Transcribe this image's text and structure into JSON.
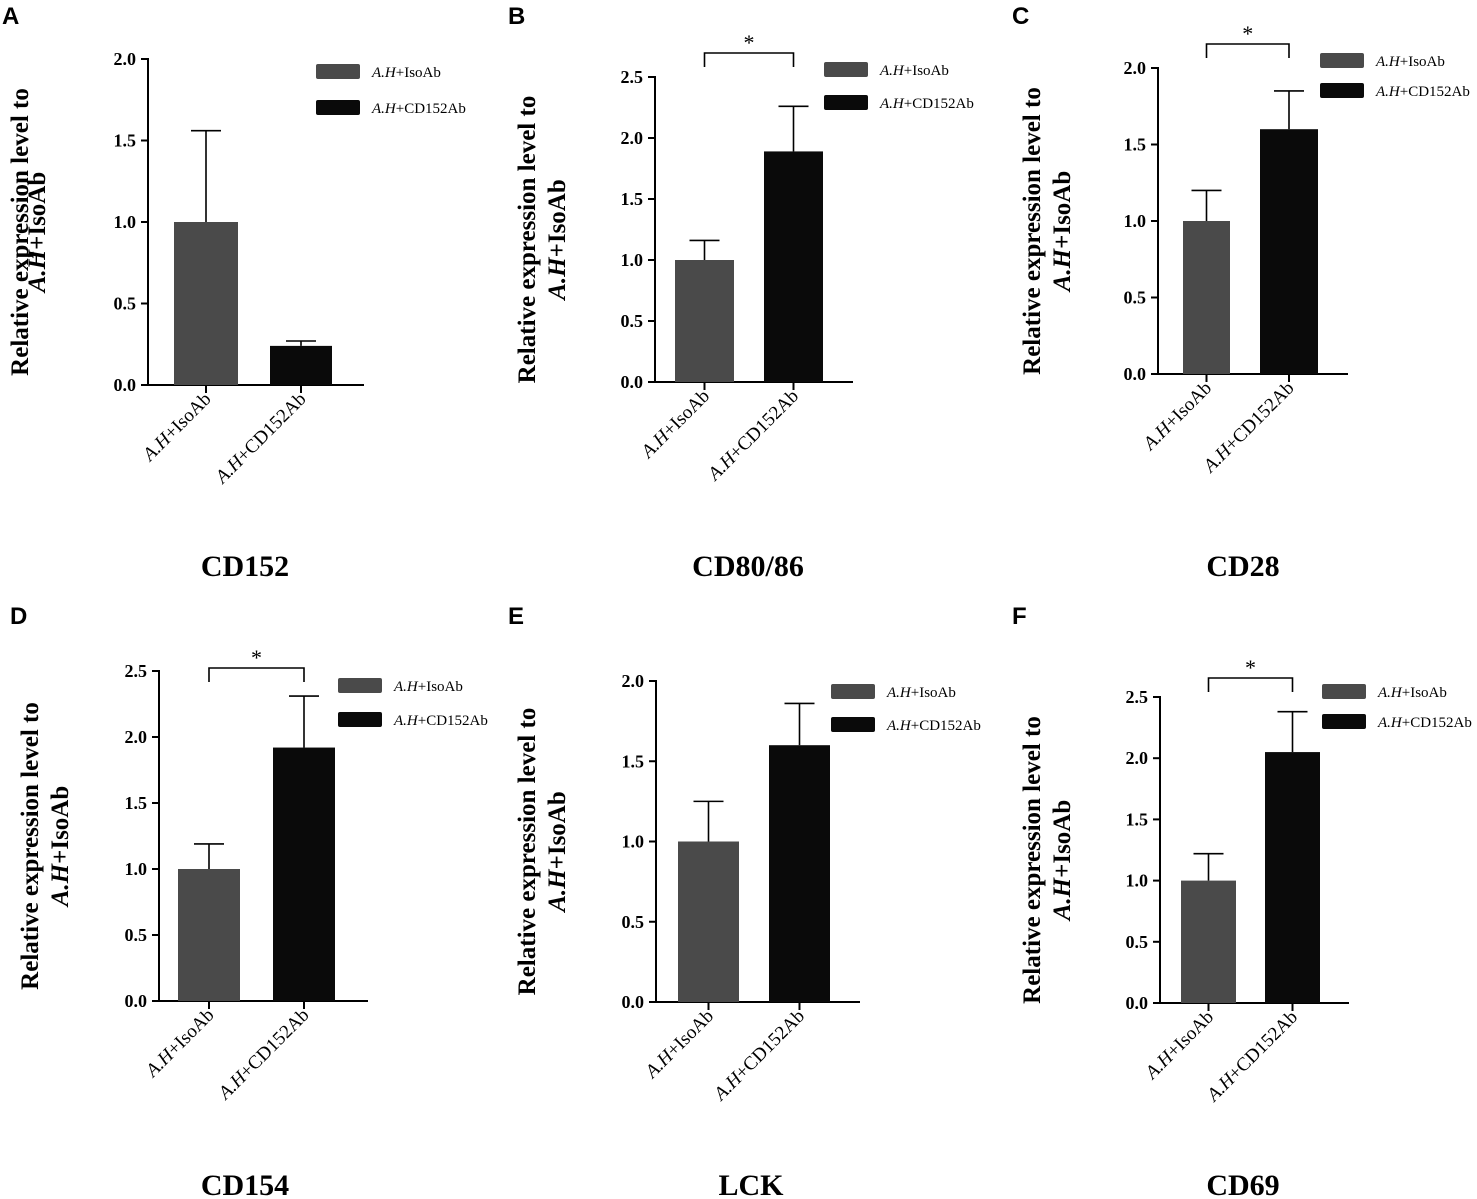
{
  "chart_data": [
    {
      "type": "bar",
      "panel": "A",
      "title": "CD152",
      "ylabel_line1": "Relative expression level to",
      "ylabel_italic": "A.H",
      "ylabel_rest": "+IsoAb",
      "categories": [
        "A.H+IsoAb",
        "A.H+CD152Ab"
      ],
      "category_italic": "A.H",
      "category_rest": [
        "+IsoAb",
        "+CD152Ab"
      ],
      "values": [
        1.0,
        0.24
      ],
      "errors": [
        0.56,
        0.03
      ],
      "ylim": [
        0,
        2.0
      ],
      "yticks": [
        0.0,
        0.5,
        1.0,
        1.5,
        2.0
      ],
      "ytick_labels": [
        "0.0",
        "0.5",
        "1.0",
        "1.5",
        "2.0"
      ],
      "colors": [
        "#4a4a4a",
        "#0a0a0a"
      ],
      "legend": [
        {
          "italic": "A.H",
          "rest": "+IsoAb",
          "color": "#4a4a4a"
        },
        {
          "italic": "A.H",
          "rest": "+CD152Ab",
          "color": "#0a0a0a"
        }
      ],
      "significance": null
    },
    {
      "type": "bar",
      "panel": "B",
      "title": "CD80/86",
      "ylabel_line1": "Relative expression level to",
      "ylabel_italic": "A.H",
      "ylabel_rest": "+IsoAb",
      "categories": [
        "A.H+IsoAb",
        "A.H+CD152Ab"
      ],
      "category_italic": "A.H",
      "category_rest": [
        "+IsoAb",
        "+CD152Ab"
      ],
      "values": [
        1.0,
        1.89
      ],
      "errors": [
        0.16,
        0.37
      ],
      "ylim": [
        0,
        2.5
      ],
      "yticks": [
        0.0,
        0.5,
        1.0,
        1.5,
        2.0,
        2.5
      ],
      "ytick_labels": [
        "0.0",
        "0.5",
        "1.0",
        "1.5",
        "2.0",
        "2.5"
      ],
      "colors": [
        "#4a4a4a",
        "#0a0a0a"
      ],
      "legend": [
        {
          "italic": "A.H",
          "rest": "+IsoAb",
          "color": "#4a4a4a"
        },
        {
          "italic": "A.H",
          "rest": "+CD152Ab",
          "color": "#0a0a0a"
        }
      ],
      "significance": "*"
    },
    {
      "type": "bar",
      "panel": "C",
      "title": "CD28",
      "ylabel_line1": "Relative expression level to",
      "ylabel_italic": "A.H",
      "ylabel_rest": "+IsoAb",
      "categories": [
        "A.H+IsoAb",
        "A.H+CD152Ab"
      ],
      "category_italic": "A.H",
      "category_rest": [
        "+IsoAb",
        "+CD152Ab"
      ],
      "values": [
        1.0,
        1.6
      ],
      "errors": [
        0.2,
        0.25
      ],
      "ylim": [
        0,
        2.0
      ],
      "yticks": [
        0.0,
        0.5,
        1.0,
        1.5,
        2.0
      ],
      "ytick_labels": [
        "0.0",
        "0.5",
        "1.0",
        "1.5",
        "2.0"
      ],
      "colors": [
        "#4a4a4a",
        "#0a0a0a"
      ],
      "legend": [
        {
          "italic": "A.H",
          "rest": "+IsoAb",
          "color": "#4a4a4a"
        },
        {
          "italic": "A.H",
          "rest": "+CD152Ab",
          "color": "#0a0a0a"
        }
      ],
      "significance": "*"
    },
    {
      "type": "bar",
      "panel": "D",
      "title": "CD154",
      "ylabel_line1": "Relative expression level to",
      "ylabel_italic": "A.H",
      "ylabel_rest": "+IsoAb",
      "categories": [
        "A.H+IsoAb",
        "A.H+CD152Ab"
      ],
      "category_italic": "A.H",
      "category_rest": [
        "+IsoAb",
        "+CD152Ab"
      ],
      "values": [
        1.0,
        1.92
      ],
      "errors": [
        0.19,
        0.39
      ],
      "ylim": [
        0,
        2.5
      ],
      "yticks": [
        0.0,
        0.5,
        1.0,
        1.5,
        2.0,
        2.5
      ],
      "ytick_labels": [
        "0.0",
        "0.5",
        "1.0",
        "1.5",
        "2.0",
        "2.5"
      ],
      "colors": [
        "#4a4a4a",
        "#0a0a0a"
      ],
      "legend": [
        {
          "italic": "A.H",
          "rest": "+IsoAb",
          "color": "#4a4a4a"
        },
        {
          "italic": "A.H",
          "rest": "+CD152Ab",
          "color": "#0a0a0a"
        }
      ],
      "significance": "*"
    },
    {
      "type": "bar",
      "panel": "E",
      "title": "LCK",
      "ylabel_line1": "Relative expression level to",
      "ylabel_italic": "A.H",
      "ylabel_rest": "+IsoAb",
      "categories": [
        "A.H+IsoAb",
        "A.H+CD152Ab"
      ],
      "category_italic": "A.H",
      "category_rest": [
        "+IsoAb",
        "+CD152Ab"
      ],
      "values": [
        1.0,
        1.6
      ],
      "errors": [
        0.25,
        0.26
      ],
      "ylim": [
        0,
        2.0
      ],
      "yticks": [
        0.0,
        0.5,
        1.0,
        1.5,
        2.0
      ],
      "ytick_labels": [
        "0.0",
        "0.5",
        "1.0",
        "1.5",
        "2.0"
      ],
      "colors": [
        "#4a4a4a",
        "#0a0a0a"
      ],
      "legend": [
        {
          "italic": "A.H",
          "rest": "+IsoAb",
          "color": "#4a4a4a"
        },
        {
          "italic": "A.H",
          "rest": "+CD152Ab",
          "color": "#0a0a0a"
        }
      ],
      "significance": null
    },
    {
      "type": "bar",
      "panel": "F",
      "title": "CD69",
      "ylabel_line1": "Relative expression level to",
      "ylabel_italic": "A.H",
      "ylabel_rest": "+IsoAb",
      "categories": [
        "A.H+IsoAb",
        "A.H+CD152Ab"
      ],
      "category_italic": "A.H",
      "category_rest": [
        "+IsoAb",
        "+CD152Ab"
      ],
      "values": [
        1.0,
        2.05
      ],
      "errors": [
        0.22,
        0.33
      ],
      "ylim": [
        0,
        2.5
      ],
      "yticks": [
        0.0,
        0.5,
        1.0,
        1.5,
        2.0,
        2.5
      ],
      "ytick_labels": [
        "0.0",
        "0.5",
        "1.0",
        "1.5",
        "2.0",
        "2.5"
      ],
      "colors": [
        "#4a4a4a",
        "#0a0a0a"
      ],
      "legend": [
        {
          "italic": "A.H",
          "rest": "+IsoAb",
          "color": "#4a4a4a"
        },
        {
          "italic": "A.H",
          "rest": "+CD152Ab",
          "color": "#0a0a0a"
        }
      ],
      "significance": "*"
    }
  ]
}
